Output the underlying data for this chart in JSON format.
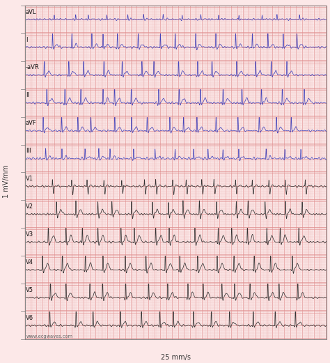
{
  "bg_color": "#fce8e8",
  "grid_minor_color": "#f0c0c0",
  "grid_major_color": "#e09090",
  "blue_color": "#4444bb",
  "black_color": "#333333",
  "xlabel": "25 mm/s",
  "ylabel": "1 mV/mm",
  "watermark": "www.ecgwaves.com",
  "duration": 10.24,
  "sample_rate": 500,
  "axis_fontsize": 7.0,
  "label_fontsize": 6.0,
  "border_color": "#999999",
  "leads": [
    {
      "name": "aVL",
      "is_blue": true,
      "r_amp": 0.18,
      "seed": 10
    },
    {
      "name": "I",
      "is_blue": true,
      "r_amp": 0.55,
      "seed": 20
    },
    {
      "name": "-aVR",
      "is_blue": true,
      "r_amp": 0.7,
      "seed": 30
    },
    {
      "name": "II",
      "is_blue": true,
      "r_amp": 0.72,
      "seed": 40
    },
    {
      "name": "aVF",
      "is_blue": true,
      "r_amp": 0.6,
      "seed": 50
    },
    {
      "name": "III",
      "is_blue": true,
      "r_amp": 0.38,
      "seed": 60
    },
    {
      "name": "V1",
      "is_blue": false,
      "r_amp": 0.3,
      "seed": 70
    },
    {
      "name": "V2",
      "is_blue": false,
      "r_amp": 0.5,
      "seed": 80
    },
    {
      "name": "V3",
      "is_blue": false,
      "r_amp": 0.65,
      "seed": 90
    },
    {
      "name": "V4",
      "is_blue": false,
      "r_amp": 0.75,
      "seed": 100
    },
    {
      "name": "V5",
      "is_blue": false,
      "r_amp": 0.8,
      "seed": 110
    },
    {
      "name": "V6",
      "is_blue": false,
      "r_amp": 0.7,
      "seed": 120
    }
  ]
}
